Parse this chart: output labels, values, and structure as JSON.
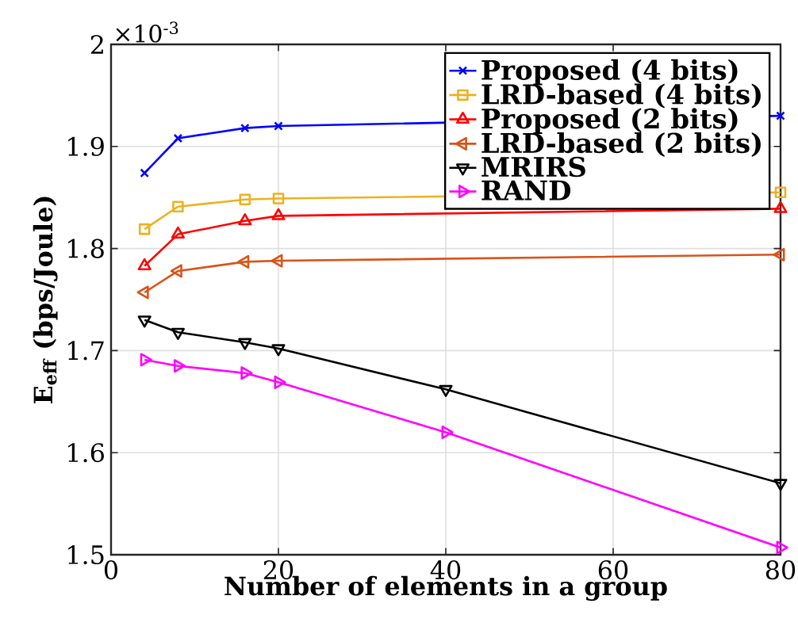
{
  "chart_data": {
    "type": "line",
    "xlabel": "Number of elements in a group",
    "ylabel": "E$_{eff}$ (bps/Joule)",
    "x": [
      4,
      8,
      16,
      20,
      40,
      80
    ],
    "series": [
      {
        "name": "Proposed (4 bits)",
        "color": "#0000ff",
        "marker": "cross",
        "values": [
          1.874,
          1.908,
          1.918,
          1.92,
          null,
          1.93
        ]
      },
      {
        "name": "LRD-based (4 bits)",
        "color": "#edb120",
        "marker": "square",
        "values": [
          1.819,
          1.841,
          1.848,
          1.849,
          null,
          1.855
        ]
      },
      {
        "name": "Proposed (2 bits)",
        "color": "#ff0000",
        "marker": "triangle",
        "values": [
          1.783,
          1.814,
          1.827,
          1.832,
          null,
          1.839
        ]
      },
      {
        "name": "LRD-based (2 bits)",
        "color": "#d95319",
        "marker": "triangle-left",
        "values": [
          1.757,
          1.778,
          1.787,
          1.788,
          null,
          1.794
        ]
      },
      {
        "name": "MRIRS",
        "color": "#000000",
        "marker": "triangle-down",
        "values": [
          1.73,
          1.718,
          1.708,
          1.702,
          1.662,
          1.57
        ]
      },
      {
        "name": "RAND",
        "color": "#ff00ff",
        "marker": "triangle-right",
        "values": [
          1.691,
          1.685,
          1.678,
          1.669,
          1.62,
          1.507
        ]
      }
    ],
    "xlim": [
      0,
      80
    ],
    "xticks": [
      0,
      20,
      40,
      60,
      80
    ],
    "ylim": [
      1.5,
      2
    ],
    "yticks": [
      1.5,
      1.6,
      1.7,
      1.8,
      1.9,
      2
    ],
    "annotations": [
      "×10$^{-3}$"
    ],
    "grid": true,
    "legend": "top right",
    "line_style": "solid"
  }
}
